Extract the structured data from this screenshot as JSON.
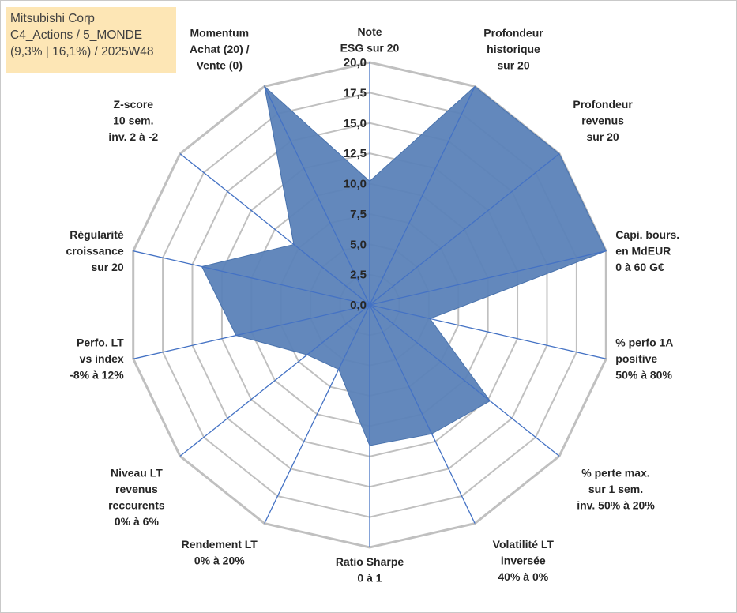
{
  "info": {
    "line1": "Mitsubishi Corp",
    "line2": "C4_Actions / 5_MONDE",
    "line3": "(9,3% | 16,1%) / 2025W48"
  },
  "chart_data": {
    "type": "radar",
    "title": "",
    "rmin": 0,
    "rmax": 20,
    "tick_step": 2.5,
    "tick_labels": [
      "0,0",
      "2,5",
      "5,0",
      "7,5",
      "10,0",
      "12,5",
      "15,0",
      "17,5",
      "20,0"
    ],
    "axes": [
      {
        "label": [
          "Note",
          "ESG sur 20"
        ],
        "value": 10.2
      },
      {
        "label": [
          "Profondeur",
          "historique",
          "sur 20"
        ],
        "value": 20
      },
      {
        "label": [
          "Profondeur",
          "revenus",
          "sur 20"
        ],
        "value": 20
      },
      {
        "label": [
          "Capi. bours.",
          "en MdEUR",
          "0 à 60 G€"
        ],
        "value": 20
      },
      {
        "label": [
          "% perfo 1A",
          "positive",
          "50% à 80%"
        ],
        "value": 5.1
      },
      {
        "label": [
          "% perte max.",
          "sur 1 sem.",
          "inv. 50% à 20%"
        ],
        "value": 12.7
      },
      {
        "label": [
          "Volatilité LT",
          "inversée",
          "40% à 0%"
        ],
        "value": 11.8
      },
      {
        "label": [
          "Ratio Sharpe",
          "0 à 1"
        ],
        "value": 11.6
      },
      {
        "label": [
          "Rendement LT",
          "0% à 20%"
        ],
        "value": 5.9
      },
      {
        "label": [
          "Niveau LT",
          "revenus",
          "reccurents",
          "0% à 6%"
        ],
        "value": 6.6
      },
      {
        "label": [
          "Perfo. LT",
          "vs index",
          "-8% à 12%"
        ],
        "value": 11.3
      },
      {
        "label": [
          "Régularité",
          "croissance",
          "sur 20"
        ],
        "value": 14.2
      },
      {
        "label": [
          "Z-score",
          "10 sem.",
          "inv. 2 à -2"
        ],
        "value": 8.0
      },
      {
        "label": [
          "Momentum",
          "Achat (20) /",
          "Vente (0)"
        ],
        "value": 20
      }
    ],
    "series": [
      {
        "name": "Mitsubishi Corp",
        "color": "#5b82b8"
      }
    ],
    "colors": {
      "grid": "#c0c0c0",
      "spoke": "#4472c4",
      "fill": "#5b82b8"
    }
  }
}
